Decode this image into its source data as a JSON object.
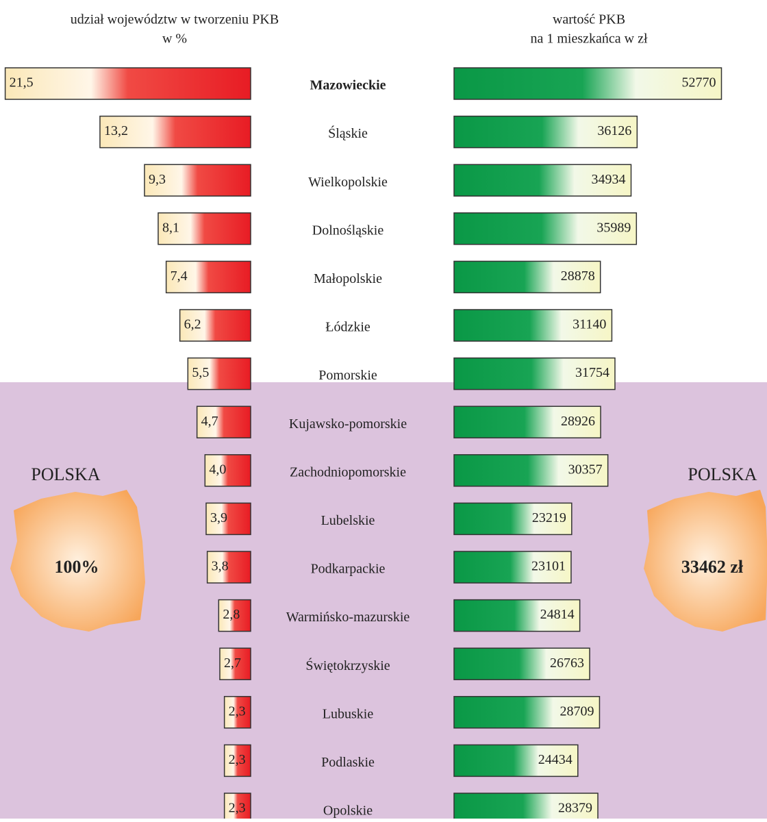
{
  "chart_data": {
    "type": "butterfly-bar",
    "left_title": [
      "udział województw w tworzeniu PKB",
      "w %"
    ],
    "right_title": [
      "wartość PKB",
      "na 1 mieszkańca w zł"
    ],
    "categories": [
      "Mazowieckie",
      "Śląskie",
      "Wielkopolskie",
      "Dolnośląskie",
      "Małopolskie",
      "Łódzkie",
      "Pomorskie",
      "Kujawsko-pomorskie",
      "Zachodniopomorskie",
      "Lubelskie",
      "Podkarpackie",
      "Warmińsko-mazurskie",
      "Świętokrzyskie",
      "Lubuskie",
      "Podlaskie",
      "Opolskie"
    ],
    "series": [
      {
        "name": "udział województw w tworzeniu PKB w %",
        "color": "#e8202a",
        "values": [
          21.5,
          13.2,
          9.3,
          8.1,
          7.4,
          6.2,
          5.5,
          4.7,
          4.0,
          3.9,
          3.8,
          2.8,
          2.7,
          2.3,
          2.3,
          2.3
        ],
        "value_labels": [
          "21,5",
          "13,2",
          "9,3",
          "8,1",
          "7,4",
          "6,2",
          "5,5",
          "4,7",
          "4,0",
          "3,9",
          "3,8",
          "2,8",
          "2,7",
          "2,3",
          "2,3",
          "2,3"
        ]
      },
      {
        "name": "wartość PKB na 1 mieszkańca w zł",
        "color": "#0c9a48",
        "values": [
          52770,
          36126,
          34934,
          35989,
          28878,
          31140,
          31754,
          28926,
          30357,
          23219,
          23101,
          24814,
          26763,
          28709,
          24434,
          28379
        ]
      }
    ],
    "left_total": {
      "label": "POLSKA",
      "value_label": "100%"
    },
    "right_total": {
      "label": "POLSKA",
      "value_label": "33462 zł"
    }
  }
}
